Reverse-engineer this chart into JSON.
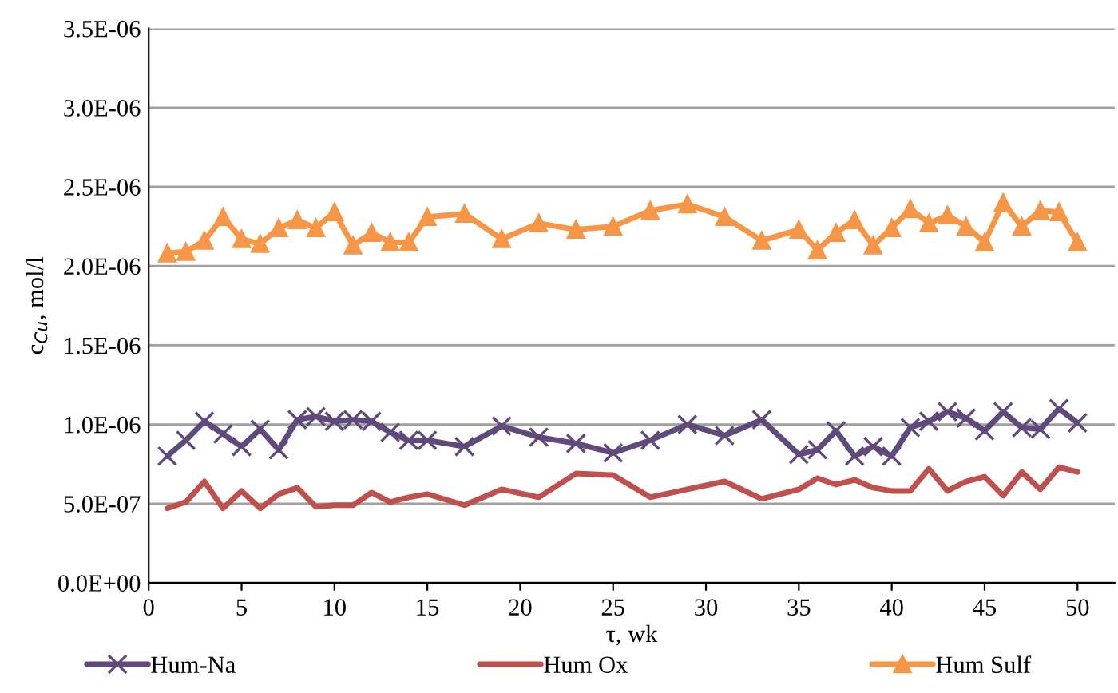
{
  "chart_data": {
    "type": "line",
    "xlabel": "τ, wk",
    "ylabel": "c$_{Cu}$, mol/l",
    "x": [
      1,
      2,
      3,
      4,
      5,
      6,
      7,
      8,
      9,
      10,
      11,
      12,
      13,
      14,
      15,
      17,
      19,
      21,
      23,
      25,
      27,
      29,
      31,
      33,
      35,
      36,
      37,
      38,
      39,
      40,
      41,
      42,
      43,
      44,
      45,
      46,
      47,
      48,
      49,
      50
    ],
    "series": [
      {
        "name": "Hum-Na",
        "color": "#604a7b",
        "marker": "cross",
        "values": [
          8e-07,
          9e-07,
          1.02e-06,
          9.4e-07,
          8.6e-07,
          9.7e-07,
          8.4e-07,
          1.03e-06,
          1.05e-06,
          1.02e-06,
          1.03e-06,
          1.02e-06,
          9.5e-07,
          9e-07,
          9e-07,
          8.6e-07,
          9.9e-07,
          9.2e-07,
          8.8e-07,
          8.2e-07,
          9e-07,
          1e-06,
          9.3e-07,
          1.03e-06,
          8.1e-07,
          8.4e-07,
          9.6e-07,
          8e-07,
          8.6e-07,
          8e-07,
          9.8e-07,
          1.02e-06,
          1.08e-06,
          1.04e-06,
          9.6e-07,
          1.08e-06,
          9.8e-07,
          9.7e-07,
          1.1e-06,
          1.01e-06
        ]
      },
      {
        "name": "Hum Ox",
        "color": "#c0504d",
        "marker": "none",
        "values": [
          4.7e-07,
          5.1e-07,
          6.4e-07,
          4.7e-07,
          5.8e-07,
          4.7e-07,
          5.6e-07,
          6e-07,
          4.8e-07,
          4.9e-07,
          4.9e-07,
          5.7e-07,
          5.1e-07,
          5.4e-07,
          5.6e-07,
          4.9e-07,
          5.9e-07,
          5.4e-07,
          6.9e-07,
          6.8e-07,
          5.4e-07,
          5.9e-07,
          6.4e-07,
          5.3e-07,
          5.9e-07,
          6.6e-07,
          6.2e-07,
          6.5e-07,
          6e-07,
          5.8e-07,
          5.8e-07,
          7.2e-07,
          5.8e-07,
          6.4e-07,
          6.7e-07,
          5.5e-07,
          7e-07,
          5.9e-07,
          7.3e-07,
          7e-07
        ]
      },
      {
        "name": "Hum Sulf",
        "color": "#f79646",
        "marker": "triangle",
        "values": [
          2.08e-06,
          2.09e-06,
          2.16e-06,
          2.31e-06,
          2.17e-06,
          2.14e-06,
          2.24e-06,
          2.29e-06,
          2.24e-06,
          2.34e-06,
          2.13e-06,
          2.21e-06,
          2.15e-06,
          2.15e-06,
          2.31e-06,
          2.33e-06,
          2.17e-06,
          2.27e-06,
          2.23e-06,
          2.25e-06,
          2.35e-06,
          2.39e-06,
          2.31e-06,
          2.16e-06,
          2.23e-06,
          2.1e-06,
          2.21e-06,
          2.29e-06,
          2.13e-06,
          2.24e-06,
          2.36e-06,
          2.27e-06,
          2.32e-06,
          2.25e-06,
          2.15e-06,
          2.4e-06,
          2.25e-06,
          2.35e-06,
          2.34e-06,
          2.15e-06
        ]
      }
    ],
    "xlim": [
      0,
      52
    ],
    "xticks": [
      0,
      5,
      10,
      15,
      20,
      25,
      30,
      35,
      40,
      45,
      50
    ],
    "ylim": [
      0,
      3.5e-06
    ],
    "yticks": [
      {
        "value": 0,
        "label": "0.0E+00"
      },
      {
        "value": 5e-07,
        "label": "5.0E-07"
      },
      {
        "value": 1e-06,
        "label": "1.0E-06"
      },
      {
        "value": 1.5e-06,
        "label": "1.5E-06"
      },
      {
        "value": 2e-06,
        "label": "2.0E-06"
      },
      {
        "value": 2.5e-06,
        "label": "2.5E-06"
      },
      {
        "value": 3e-06,
        "label": "3.0E-06"
      },
      {
        "value": 3.5e-06,
        "label": "3.5E-06"
      }
    ],
    "grid": "y",
    "legend": "bottom",
    "line_style": "solid"
  }
}
